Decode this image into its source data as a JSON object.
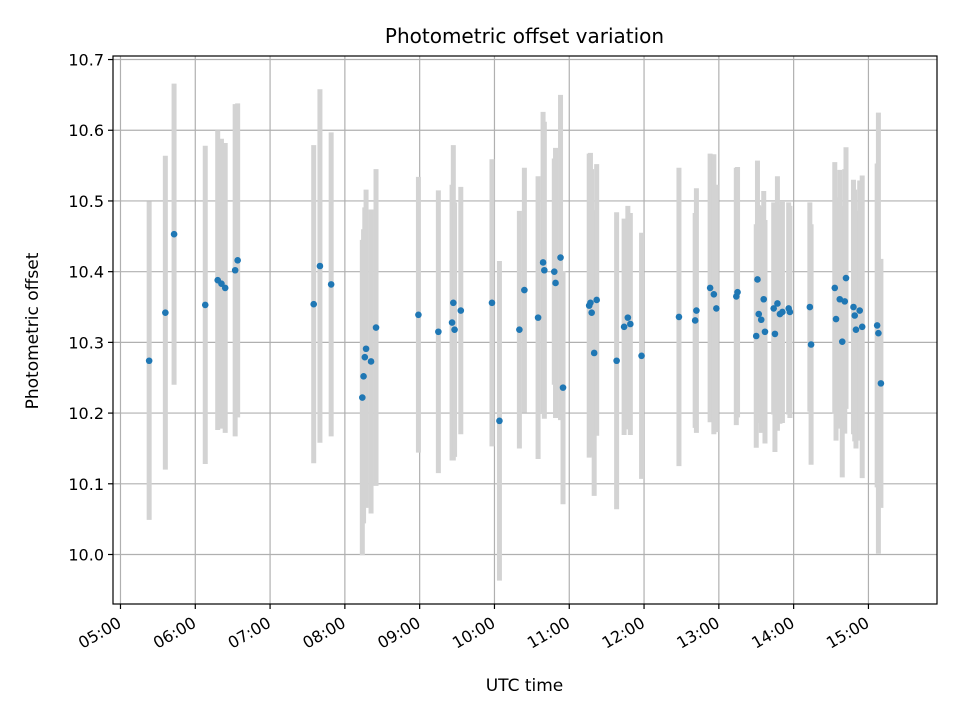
{
  "chart_data": {
    "type": "scatter",
    "title": "Photometric offset variation",
    "xlabel": "UTC time",
    "ylabel": "Photometric offset",
    "xlim": [
      "04:54",
      "15:55"
    ],
    "ylim": [
      9.93,
      10.705
    ],
    "grid": true,
    "legend": "none",
    "x_ticks": [
      "05:00",
      "06:00",
      "07:00",
      "08:00",
      "09:00",
      "10:00",
      "11:00",
      "12:00",
      "13:00",
      "14:00",
      "15:00"
    ],
    "y_ticks": [
      "10.0",
      "10.1",
      "10.2",
      "10.3",
      "10.4",
      "10.5",
      "10.6",
      "10.7"
    ],
    "colors": {
      "point": "#1f77b4",
      "errorbar": "#d3d3d3",
      "grid": "#b0b0b0"
    },
    "series": [
      {
        "x": [
          "05:23",
          "05:36",
          "05:43",
          "06:08",
          "06:18",
          "06:21",
          "06:24",
          "06:32",
          "06:34",
          "07:35",
          "07:40",
          "07:49",
          "08:14",
          "08:15",
          "08:16",
          "08:17",
          "08:21",
          "08:25",
          "08:59",
          "09:15",
          "09:26",
          "09:27",
          "09:28",
          "09:33",
          "09:58",
          "10:04",
          "10:20",
          "10:24",
          "10:35",
          "10:39",
          "10:40",
          "10:48",
          "10:49",
          "10:53",
          "10:55",
          "11:16",
          "11:17",
          "11:18",
          "11:20",
          "11:22",
          "11:38",
          "11:44",
          "11:47",
          "11:49",
          "11:58",
          "12:28",
          "12:41",
          "12:42",
          "12:53",
          "12:56",
          "12:58",
          "13:14",
          "13:15",
          "13:30",
          "13:31",
          "13:32",
          "13:34",
          "13:36",
          "13:37",
          "13:44",
          "13:45",
          "13:47",
          "13:49",
          "13:51",
          "13:56",
          "13:57",
          "14:13",
          "14:14",
          "14:33",
          "14:34",
          "14:37",
          "14:39",
          "14:41",
          "14:42",
          "14:48",
          "14:49",
          "14:50",
          "14:53",
          "14:55",
          "15:07",
          "15:08",
          "15:10"
        ],
        "y": [
          10.274,
          10.342,
          10.453,
          10.353,
          10.388,
          10.383,
          10.377,
          10.402,
          10.416,
          10.354,
          10.408,
          10.382,
          10.222,
          10.252,
          10.279,
          10.291,
          10.273,
          10.321,
          10.339,
          10.315,
          10.328,
          10.356,
          10.318,
          10.345,
          10.356,
          10.189,
          10.318,
          10.374,
          10.335,
          10.413,
          10.402,
          10.4,
          10.384,
          10.42,
          10.236,
          10.352,
          10.356,
          10.342,
          10.285,
          10.36,
          10.274,
          10.322,
          10.335,
          10.326,
          10.281,
          10.336,
          10.331,
          10.345,
          10.377,
          10.368,
          10.348,
          10.365,
          10.371,
          10.309,
          10.389,
          10.34,
          10.332,
          10.361,
          10.315,
          10.348,
          10.312,
          10.355,
          10.34,
          10.343,
          10.348,
          10.343,
          10.35,
          10.297,
          10.377,
          10.333,
          10.361,
          10.301,
          10.358,
          10.391,
          10.35,
          10.338,
          10.318,
          10.345,
          10.322,
          10.324,
          10.313,
          10.242
        ],
        "yerr": [
          0.225,
          0.222,
          0.213,
          0.225,
          0.212,
          0.205,
          0.205,
          0.235,
          0.222,
          0.225,
          0.25,
          0.215,
          0.223,
          0.208,
          0.212,
          0.225,
          0.215,
          0.224,
          0.195,
          0.2,
          0.195,
          0.223,
          0.18,
          0.175,
          0.203,
          0.226,
          0.168,
          0.173,
          0.2,
          0.213,
          0.21,
          0.16,
          0.191,
          0.23,
          0.165,
          0.215,
          0.212,
          0.203,
          0.202,
          0.192,
          0.21,
          0.153,
          0.158,
          0.157,
          0.174,
          0.211,
          0.152,
          0.173,
          0.19,
          0.198,
          0.175,
          0.182,
          0.177,
          0.158,
          0.168,
          0.154,
          0.16,
          0.153,
          0.158,
          0.15,
          0.167,
          0.18,
          0.155,
          0.157,
          0.15,
          0.15,
          0.148,
          0.17,
          0.178,
          0.172,
          0.183,
          0.192,
          0.187,
          0.185,
          0.18,
          0.178,
          0.168,
          0.184,
          0.214,
          0.229,
          0.312,
          0.176
        ]
      }
    ]
  }
}
